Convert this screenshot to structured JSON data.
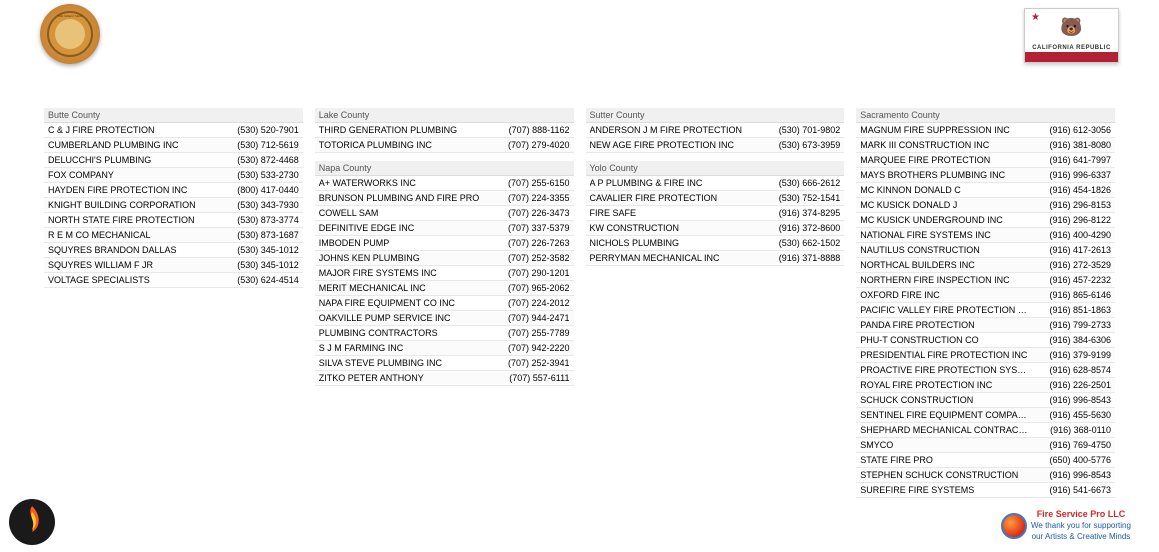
{
  "seal_label": "Great Seal of the State of California",
  "flag": {
    "text": "CALIFORNIA REPUBLIC"
  },
  "footer_card": {
    "line1": "Fire Service Pro LLC",
    "line2": "We thank you for supporting",
    "line3": "our Artists & Creative Minds"
  },
  "columns": [
    [
      {
        "county": "Butte County",
        "rows": [
          {
            "name": "C & J FIRE PROTECTION",
            "phone": "(530) 520-7901"
          },
          {
            "name": "CUMBERLAND PLUMBING INC",
            "phone": "(530) 712-5619"
          },
          {
            "name": "DELUCCHI'S PLUMBING",
            "phone": "(530) 872-4468"
          },
          {
            "name": "FOX COMPANY",
            "phone": "(530) 533-2730"
          },
          {
            "name": "HAYDEN FIRE PROTECTION INC",
            "phone": "(800) 417-0440"
          },
          {
            "name": "KNIGHT BUILDING CORPORATION",
            "phone": "(530) 343-7930"
          },
          {
            "name": "NORTH STATE FIRE PROTECTION",
            "phone": "(530) 873-3774"
          },
          {
            "name": "R E M CO MECHANICAL",
            "phone": "(530) 873-1687"
          },
          {
            "name": "SQUYRES BRANDON DALLAS",
            "phone": "(530) 345-1012"
          },
          {
            "name": "SQUYRES WILLIAM F JR",
            "phone": "(530) 345-1012"
          },
          {
            "name": "VOLTAGE SPECIALISTS",
            "phone": "(530) 624-4514"
          }
        ]
      }
    ],
    [
      {
        "county": "Lake County",
        "rows": [
          {
            "name": "THIRD GENERATION PLUMBING",
            "phone": "(707) 888-1162"
          },
          {
            "name": "TOTORICA PLUMBING INC",
            "phone": "(707) 279-4020"
          }
        ]
      },
      {
        "county": "Napa County",
        "rows": [
          {
            "name": "A+ WATERWORKS INC",
            "phone": "(707) 255-6150"
          },
          {
            "name": "BRUNSON PLUMBING AND FIRE PRO",
            "phone": "(707) 224-3355"
          },
          {
            "name": "COWELL SAM",
            "phone": "(707) 226-3473"
          },
          {
            "name": "DEFINITIVE EDGE INC",
            "phone": "(707) 337-5379"
          },
          {
            "name": "IMBODEN PUMP",
            "phone": "(707) 226-7263"
          },
          {
            "name": "JOHNS KEN PLUMBING",
            "phone": "(707) 252-3582"
          },
          {
            "name": "MAJOR FIRE SYSTEMS INC",
            "phone": "(707) 290-1201"
          },
          {
            "name": "MERIT MECHANICAL INC",
            "phone": "(707) 965-2062"
          },
          {
            "name": "NAPA FIRE EQUIPMENT CO INC",
            "phone": "(707) 224-2012"
          },
          {
            "name": "OAKVILLE PUMP SERVICE INC",
            "phone": "(707) 944-2471"
          },
          {
            "name": "PLUMBING CONTRACTORS",
            "phone": "(707) 255-7789"
          },
          {
            "name": "S J M FARMING INC",
            "phone": "(707) 942-2220"
          },
          {
            "name": "SILVA STEVE PLUMBING INC",
            "phone": "(707) 252-3941"
          },
          {
            "name": "ZITKO PETER ANTHONY",
            "phone": "(707) 557-6111"
          }
        ]
      }
    ],
    [
      {
        "county": "Sutter County",
        "rows": [
          {
            "name": "ANDERSON J M FIRE PROTECTION",
            "phone": "(530) 701-9802"
          },
          {
            "name": "NEW AGE FIRE PROTECTION INC",
            "phone": "(530) 673-3959"
          }
        ]
      },
      {
        "county": "Yolo County",
        "rows": [
          {
            "name": "A P PLUMBING & FIRE INC",
            "phone": "(530) 666-2612"
          },
          {
            "name": "CAVALIER FIRE PROTECTION",
            "phone": "(530) 752-1541"
          },
          {
            "name": "FIRE SAFE",
            "phone": "(916) 374-8295"
          },
          {
            "name": "KW CONSTRUCTION",
            "phone": "(916) 372-8600"
          },
          {
            "name": "NICHOLS PLUMBING",
            "phone": "(530) 662-1502"
          },
          {
            "name": "PERRYMAN MECHANICAL INC",
            "phone": "(916) 371-8888"
          }
        ]
      }
    ],
    [
      {
        "county": "Sacramento County",
        "rows": [
          {
            "name": "MAGNUM FIRE SUPPRESSION INC",
            "phone": "(916) 612-3056"
          },
          {
            "name": "MARK III CONSTRUCTION INC",
            "phone": "(916) 381-8080"
          },
          {
            "name": "MARQUEE FIRE PROTECTION",
            "phone": "(916) 641-7997"
          },
          {
            "name": "MAYS BROTHERS PLUMBING INC",
            "phone": "(916) 996-6337"
          },
          {
            "name": "MC KINNON DONALD C",
            "phone": "(916) 454-1826"
          },
          {
            "name": "MC KUSICK DONALD J",
            "phone": "(916) 296-8153"
          },
          {
            "name": "MC KUSICK UNDERGROUND INC",
            "phone": "(916) 296-8122"
          },
          {
            "name": "NATIONAL FIRE SYSTEMS INC",
            "phone": "(916) 400-4290"
          },
          {
            "name": "NAUTILUS CONSTRUCTION",
            "phone": "(916) 417-2613"
          },
          {
            "name": "NORTHCAL BUILDERS INC",
            "phone": "(916) 272-3529"
          },
          {
            "name": "NORTHERN FIRE INSPECTION INC",
            "phone": "(916) 457-2232"
          },
          {
            "name": "OXFORD FIRE INC",
            "phone": "(916) 865-6146"
          },
          {
            "name": "PACIFIC VALLEY FIRE PROTECTION INC",
            "phone": "(916) 851-1863"
          },
          {
            "name": "PANDA FIRE PROTECTION",
            "phone": "(916) 799-2733"
          },
          {
            "name": "PHU-T CONSTRUCTION CO",
            "phone": "(916) 384-6306"
          },
          {
            "name": "PRESIDENTIAL FIRE PROTECTION INC",
            "phone": "(916) 379-9199"
          },
          {
            "name": "PROACTIVE FIRE PROTECTION SYSTEMS",
            "phone": "(916) 628-8574"
          },
          {
            "name": "ROYAL FIRE PROTECTION INC",
            "phone": "(916) 226-2501"
          },
          {
            "name": "SCHUCK CONSTRUCTION",
            "phone": "(916) 996-8543"
          },
          {
            "name": "SENTINEL FIRE EQUIPMENT COMPANY",
            "phone": "(916) 455-5630"
          },
          {
            "name": "SHEPHARD MECHANICAL CONTRACTORS INC",
            "phone": "(916) 368-0110"
          },
          {
            "name": "SMYCO",
            "phone": "(916) 769-4750"
          },
          {
            "name": "STATE FIRE PRO",
            "phone": "(650) 400-5776"
          },
          {
            "name": "STEPHEN SCHUCK CONSTRUCTION",
            "phone": "(916) 996-8543"
          },
          {
            "name": "SUREFIRE FIRE SYSTEMS",
            "phone": "(916) 541-6673"
          }
        ]
      }
    ]
  ]
}
